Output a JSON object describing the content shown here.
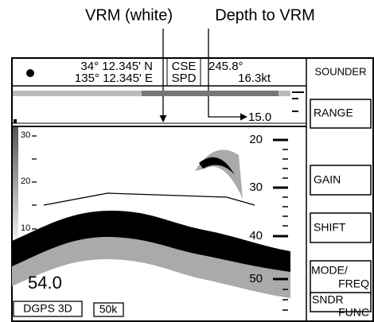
{
  "callouts": {
    "vrm": "VRM (white)",
    "depth_to_vrm": "Depth to VRM"
  },
  "header": {
    "latitude": "34° 12.345' N",
    "longitude": "135° 12.345' E",
    "course_label": "CSE",
    "speed_label": "SPD",
    "course": "245.8°",
    "speed": "16.3kt",
    "mode": "SOUNDER"
  },
  "vrm_depth": "15.0",
  "left_scale": [
    "30",
    "20",
    "10"
  ],
  "right_scale": [
    "20",
    "30",
    "40",
    "50"
  ],
  "depth": "54.0",
  "status": {
    "position": "DGPS 3D",
    "frequency": "50k"
  },
  "menu": [
    "RANGE",
    "GAIN",
    "SHIFT",
    [
      "MODE/",
      "FREQ"
    ],
    [
      "SNDR",
      "FUNC"
    ]
  ]
}
